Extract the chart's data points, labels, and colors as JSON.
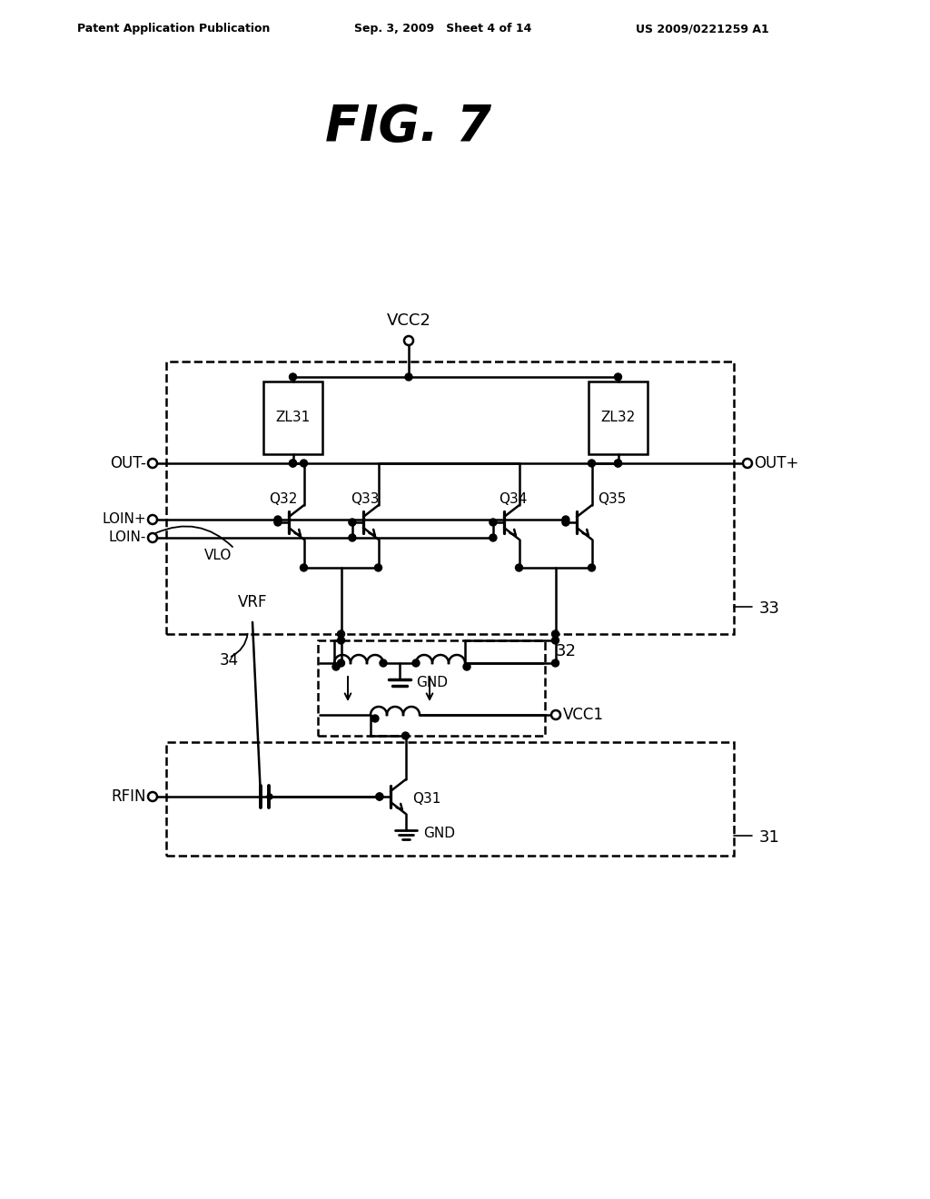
{
  "title": "FIG. 7",
  "header_left": "Patent Application Publication",
  "header_center": "Sep. 3, 2009   Sheet 4 of 14",
  "header_right": "US 2009/0221259 A1",
  "bg_color": "#ffffff"
}
